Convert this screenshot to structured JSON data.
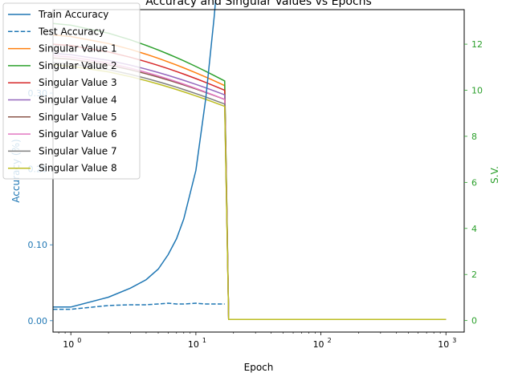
{
  "chart_data": {
    "type": "line",
    "title": "Accuracy and Singular Values vs Epochs",
    "xlabel": "Epoch",
    "ylabel_left": "Accuracy (%)",
    "ylabel_right": "S.V.",
    "x_scale": "log",
    "xlim": [
      0.72,
      1400
    ],
    "x_ticks": [
      {
        "value": 1,
        "label": "10",
        "sup": "0"
      },
      {
        "value": 10,
        "label": "10",
        "sup": "1"
      },
      {
        "value": 100,
        "label": "10",
        "sup": "2"
      },
      {
        "value": 1000,
        "label": "10",
        "sup": "3"
      }
    ],
    "ylim_left": [
      -0.015,
      0.41
    ],
    "ylim_right": [
      -0.5,
      13.5
    ],
    "y_ticks_left": [
      {
        "value": 0.0,
        "label": "0.00"
      },
      {
        "value": 0.1,
        "label": "0.10"
      },
      {
        "value": 0.2,
        "label": "0.20"
      },
      {
        "value": 0.3,
        "label": "0.30"
      }
    ],
    "y_ticks_right": [
      {
        "value": 0,
        "label": "0"
      },
      {
        "value": 2,
        "label": "2"
      },
      {
        "value": 4,
        "label": "4"
      },
      {
        "value": 6,
        "label": "6"
      },
      {
        "value": 8,
        "label": "8"
      },
      {
        "value": 10,
        "label": "10"
      },
      {
        "value": 12,
        "label": "12"
      }
    ],
    "left_axis_color": "#1f77b4",
    "right_axis_color": "#2ca02c",
    "legend_position": "top-left",
    "grid": false,
    "series_left": [
      {
        "name": "Train Accuracy",
        "color": "#1f77b4",
        "dash": "solid",
        "x": [
          0.7,
          1,
          2,
          3,
          4,
          5,
          6,
          7,
          8,
          10,
          12,
          14,
          16,
          17
        ],
        "y": [
          0.018,
          0.018,
          0.031,
          0.043,
          0.054,
          0.068,
          0.087,
          0.108,
          0.134,
          0.198,
          0.293,
          0.4,
          0.51,
          0.587
        ]
      },
      {
        "name": "Test Accuracy",
        "color": "#1f77b4",
        "dash": "dashed",
        "x": [
          0.7,
          1,
          2,
          3,
          4,
          5,
          6,
          7,
          8,
          10,
          12,
          14,
          16,
          17
        ],
        "y": [
          0.015,
          0.015,
          0.02,
          0.021,
          0.021,
          0.022,
          0.023,
          0.022,
          0.022,
          0.023,
          0.022,
          0.022,
          0.022,
          0.022
        ]
      }
    ],
    "series_right": [
      {
        "name": "Singular Value 1",
        "color": "#ff7f0e",
        "start": 12.4,
        "end": 10.2
      },
      {
        "name": "Singular Value 2",
        "color": "#2ca02c",
        "start": 12.9,
        "end": 10.4
      },
      {
        "name": "Singular Value 3",
        "color": "#d62728",
        "start": 12.0,
        "end": 10.0
      },
      {
        "name": "Singular Value 4",
        "color": "#9467bd",
        "start": 11.6,
        "end": 9.8
      },
      {
        "name": "Singular Value 5",
        "color": "#8c564b",
        "start": 11.4,
        "end": 9.6
      },
      {
        "name": "Singular Value 6",
        "color": "#e377c2",
        "start": 11.5,
        "end": 9.6
      },
      {
        "name": "Singular Value 7",
        "color": "#7f7f7f",
        "start": 11.2,
        "end": 9.4
      },
      {
        "name": "Singular Value 8",
        "color": "#bcbd22",
        "start": 11.1,
        "end": 9.3
      }
    ],
    "sv_decay_x": [
      0.7,
      1,
      2,
      3,
      4,
      5,
      6,
      7,
      8,
      10,
      12,
      14,
      16,
      17,
      17.5,
      17.8,
      18,
      18.3,
      20,
      50,
      100,
      300,
      1000
    ],
    "sv_floor": 0.05
  }
}
